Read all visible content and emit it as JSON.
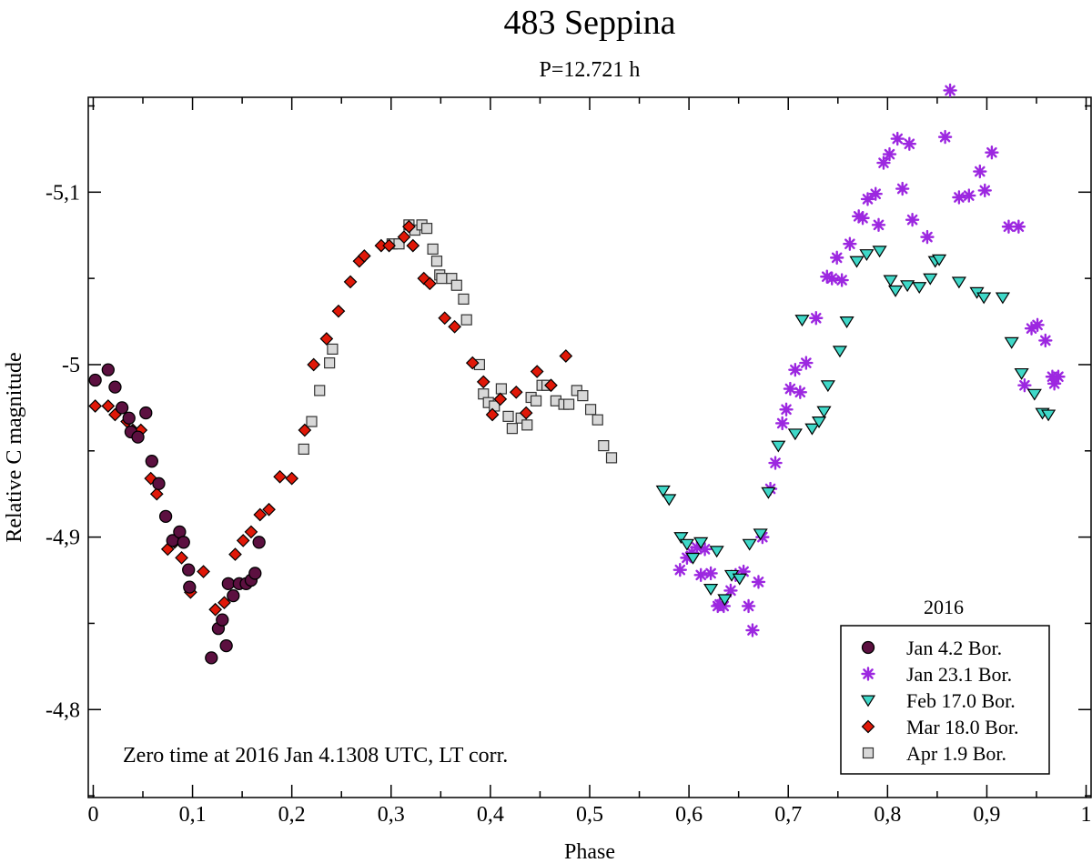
{
  "chart_data": {
    "type": "scatter",
    "title": "483 Seppina",
    "subtitle": "P=12.721 h",
    "xlabel": "Phase",
    "ylabel": "Relative C magnitude",
    "xlim": [
      -0.005,
      1.005
    ],
    "ylim": [
      -5.155,
      -4.749
    ],
    "y_inverted": true,
    "x_ticks": [
      {
        "value": 0,
        "label": "0"
      },
      {
        "value": 0.1,
        "label": "0,1"
      },
      {
        "value": 0.2,
        "label": "0,2"
      },
      {
        "value": 0.3,
        "label": "0,3"
      },
      {
        "value": 0.4,
        "label": "0,4"
      },
      {
        "value": 0.5,
        "label": "0,5"
      },
      {
        "value": 0.6,
        "label": "0,6"
      },
      {
        "value": 0.7,
        "label": "0,7"
      },
      {
        "value": 0.8,
        "label": "0,8"
      },
      {
        "value": 0.9,
        "label": "0,9"
      },
      {
        "value": 1.0,
        "label": "1"
      }
    ],
    "y_ticks": [
      {
        "value": -5.1,
        "label": "-5,1"
      },
      {
        "value": -5.0,
        "label": "-5"
      },
      {
        "value": -4.9,
        "label": "-4,9"
      },
      {
        "value": -4.8,
        "label": "-4,8"
      }
    ],
    "annotation": "Zero time at 2016 Jan 4.1308 UTC, LT corr.",
    "legend_title": "2016",
    "legend_position": "bottom-right",
    "grid": false,
    "series": [
      {
        "name": "Jan 4.2 Bor.",
        "marker": "circle",
        "color": "#5c1040",
        "points": [
          [
            0.002,
            -4.991
          ],
          [
            0.015,
            -4.997
          ],
          [
            0.022,
            -4.987
          ],
          [
            0.029,
            -4.975
          ],
          [
            0.036,
            -4.969
          ],
          [
            0.038,
            -4.961
          ],
          [
            0.045,
            -4.958
          ],
          [
            0.053,
            -4.972
          ],
          [
            0.059,
            -4.944
          ],
          [
            0.066,
            -4.931
          ],
          [
            0.073,
            -4.912
          ],
          [
            0.08,
            -4.898
          ],
          [
            0.087,
            -4.903
          ],
          [
            0.091,
            -4.897
          ],
          [
            0.096,
            -4.881
          ],
          [
            0.097,
            -4.871
          ],
          [
            0.119,
            -4.83
          ],
          [
            0.126,
            -4.847
          ],
          [
            0.13,
            -4.852
          ],
          [
            0.134,
            -4.837
          ],
          [
            0.136,
            -4.873
          ],
          [
            0.141,
            -4.866
          ],
          [
            0.147,
            -4.873
          ],
          [
            0.154,
            -4.873
          ],
          [
            0.159,
            -4.875
          ],
          [
            0.163,
            -4.879
          ],
          [
            0.167,
            -4.897
          ]
        ]
      },
      {
        "name": "Jan 23.1 Bor.",
        "marker": "asterisk",
        "color": "#9c27e0",
        "points": [
          [
            0.591,
            -4.881
          ],
          [
            0.598,
            -4.888
          ],
          [
            0.603,
            -4.891
          ],
          [
            0.608,
            -4.894
          ],
          [
            0.612,
            -4.878
          ],
          [
            0.616,
            -4.893
          ],
          [
            0.622,
            -4.879
          ],
          [
            0.629,
            -4.86
          ],
          [
            0.631,
            -4.861
          ],
          [
            0.635,
            -4.86
          ],
          [
            0.642,
            -4.869
          ],
          [
            0.647,
            -4.878
          ],
          [
            0.655,
            -4.88
          ],
          [
            0.66,
            -4.86
          ],
          [
            0.664,
            -4.846
          ],
          [
            0.67,
            -4.874
          ],
          [
            0.674,
            -4.9
          ],
          [
            0.682,
            -4.928
          ],
          [
            0.687,
            -4.943
          ],
          [
            0.694,
            -4.966
          ],
          [
            0.698,
            -4.974
          ],
          [
            0.702,
            -4.986
          ],
          [
            0.707,
            -4.997
          ],
          [
            0.712,
            -4.984
          ],
          [
            0.718,
            -5.001
          ],
          [
            0.728,
            -5.027
          ],
          [
            0.739,
            -5.051
          ],
          [
            0.744,
            -5.05
          ],
          [
            0.749,
            -5.062
          ],
          [
            0.754,
            -5.049
          ],
          [
            0.762,
            -5.07
          ],
          [
            0.771,
            -5.086
          ],
          [
            0.775,
            -5.085
          ],
          [
            0.78,
            -5.096
          ],
          [
            0.788,
            -5.099
          ],
          [
            0.791,
            -5.081
          ],
          [
            0.796,
            -5.117
          ],
          [
            0.802,
            -5.122
          ],
          [
            0.81,
            -5.131
          ],
          [
            0.815,
            -5.102
          ],
          [
            0.822,
            -5.128
          ],
          [
            0.825,
            -5.084
          ],
          [
            0.84,
            -5.074
          ],
          [
            0.858,
            -5.132
          ],
          [
            0.863,
            -5.159
          ],
          [
            0.872,
            -5.097
          ],
          [
            0.882,
            -5.098
          ],
          [
            0.893,
            -5.112
          ],
          [
            0.898,
            -5.101
          ],
          [
            0.905,
            -5.123
          ],
          [
            0.922,
            -5.08
          ],
          [
            0.932,
            -5.08
          ],
          [
            0.938,
            -4.988
          ],
          [
            0.945,
            -5.021
          ],
          [
            0.951,
            -5.023
          ],
          [
            0.959,
            -5.014
          ],
          [
            0.966,
            -4.993
          ],
          [
            0.968,
            -4.989
          ],
          [
            0.972,
            -4.993
          ]
        ]
      },
      {
        "name": "Feb 17.0 Bor.",
        "marker": "triangle-down",
        "color": "#3fd8c8",
        "points": [
          [
            0.574,
            -4.927
          ],
          [
            0.58,
            -4.922
          ],
          [
            0.592,
            -4.9
          ],
          [
            0.598,
            -4.896
          ],
          [
            0.604,
            -4.888
          ],
          [
            0.612,
            -4.897
          ],
          [
            0.622,
            -4.87
          ],
          [
            0.628,
            -4.892
          ],
          [
            0.636,
            -4.864
          ],
          [
            0.643,
            -4.878
          ],
          [
            0.651,
            -4.876
          ],
          [
            0.661,
            -4.896
          ],
          [
            0.672,
            -4.902
          ],
          [
            0.68,
            -4.926
          ],
          [
            0.69,
            -4.953
          ],
          [
            0.707,
            -4.96
          ],
          [
            0.714,
            -5.026
          ],
          [
            0.724,
            -4.963
          ],
          [
            0.731,
            -4.967
          ],
          [
            0.736,
            -4.973
          ],
          [
            0.74,
            -4.988
          ],
          [
            0.752,
            -5.008
          ],
          [
            0.759,
            -5.025
          ],
          [
            0.769,
            -5.06
          ],
          [
            0.779,
            -5.064
          ],
          [
            0.792,
            -5.066
          ],
          [
            0.803,
            -5.049
          ],
          [
            0.808,
            -5.043
          ],
          [
            0.82,
            -5.046
          ],
          [
            0.832,
            -5.045
          ],
          [
            0.843,
            -5.05
          ],
          [
            0.848,
            -5.06
          ],
          [
            0.852,
            -5.061
          ],
          [
            0.872,
            -5.048
          ],
          [
            0.89,
            -5.042
          ],
          [
            0.897,
            -5.039
          ],
          [
            0.916,
            -5.039
          ],
          [
            0.925,
            -5.013
          ],
          [
            0.935,
            -4.995
          ],
          [
            0.948,
            -4.983
          ],
          [
            0.956,
            -4.972
          ],
          [
            0.962,
            -4.971
          ]
        ]
      },
      {
        "name": "Mar 18.0 Bor.",
        "marker": "diamond",
        "color": "#e01808",
        "points": [
          [
            0.002,
            -4.976
          ],
          [
            0.015,
            -4.976
          ],
          [
            0.022,
            -4.971
          ],
          [
            0.034,
            -4.967
          ],
          [
            0.04,
            -4.962
          ],
          [
            0.048,
            -4.962
          ],
          [
            0.058,
            -4.934
          ],
          [
            0.064,
            -4.925
          ],
          [
            0.075,
            -4.893
          ],
          [
            0.082,
            -4.897
          ],
          [
            0.089,
            -4.888
          ],
          [
            0.098,
            -4.868
          ],
          [
            0.111,
            -4.88
          ],
          [
            0.123,
            -4.858
          ],
          [
            0.132,
            -4.862
          ],
          [
            0.143,
            -4.89
          ],
          [
            0.151,
            -4.898
          ],
          [
            0.159,
            -4.903
          ],
          [
            0.168,
            -4.913
          ],
          [
            0.177,
            -4.916
          ],
          [
            0.188,
            -4.935
          ],
          [
            0.2,
            -4.934
          ],
          [
            0.213,
            -4.962
          ],
          [
            0.222,
            -5.0
          ],
          [
            0.235,
            -5.015
          ],
          [
            0.247,
            -5.031
          ],
          [
            0.259,
            -5.048
          ],
          [
            0.268,
            -5.06
          ],
          [
            0.273,
            -5.063
          ],
          [
            0.29,
            -5.069
          ],
          [
            0.298,
            -5.069
          ],
          [
            0.313,
            -5.074
          ],
          [
            0.318,
            -5.08
          ],
          [
            0.322,
            -5.069
          ],
          [
            0.333,
            -5.05
          ],
          [
            0.339,
            -5.047
          ],
          [
            0.354,
            -5.027
          ],
          [
            0.364,
            -5.022
          ],
          [
            0.382,
            -5.001
          ],
          [
            0.393,
            -4.99
          ],
          [
            0.402,
            -4.971
          ],
          [
            0.41,
            -4.98
          ],
          [
            0.426,
            -4.984
          ],
          [
            0.436,
            -4.972
          ],
          [
            0.447,
            -4.996
          ],
          [
            0.461,
            -4.988
          ],
          [
            0.476,
            -5.005
          ]
        ]
      },
      {
        "name": "Apr 1.9 Bor.",
        "marker": "square",
        "color": "#d8d8d8",
        "points": [
          [
            0.212,
            -4.951
          ],
          [
            0.22,
            -4.967
          ],
          [
            0.228,
            -4.985
          ],
          [
            0.238,
            -5.001
          ],
          [
            0.241,
            -5.009
          ],
          [
            0.301,
            -5.07
          ],
          [
            0.308,
            -5.07
          ],
          [
            0.318,
            -5.081
          ],
          [
            0.324,
            -5.078
          ],
          [
            0.331,
            -5.081
          ],
          [
            0.336,
            -5.079
          ],
          [
            0.342,
            -5.067
          ],
          [
            0.346,
            -5.06
          ],
          [
            0.349,
            -5.052
          ],
          [
            0.351,
            -5.05
          ],
          [
            0.361,
            -5.05
          ],
          [
            0.366,
            -5.046
          ],
          [
            0.373,
            -5.038
          ],
          [
            0.376,
            -5.026
          ],
          [
            0.389,
            -5.0
          ],
          [
            0.393,
            -4.983
          ],
          [
            0.398,
            -4.978
          ],
          [
            0.404,
            -4.976
          ],
          [
            0.411,
            -4.986
          ],
          [
            0.418,
            -4.97
          ],
          [
            0.422,
            -4.963
          ],
          [
            0.431,
            -4.969
          ],
          [
            0.437,
            -4.965
          ],
          [
            0.441,
            -4.981
          ],
          [
            0.446,
            -4.979
          ],
          [
            0.452,
            -4.988
          ],
          [
            0.457,
            -4.988
          ],
          [
            0.466,
            -4.979
          ],
          [
            0.474,
            -4.977
          ],
          [
            0.479,
            -4.977
          ],
          [
            0.487,
            -4.985
          ],
          [
            0.493,
            -4.982
          ],
          [
            0.501,
            -4.974
          ],
          [
            0.508,
            -4.968
          ],
          [
            0.514,
            -4.953
          ],
          [
            0.522,
            -4.946
          ]
        ]
      }
    ]
  }
}
